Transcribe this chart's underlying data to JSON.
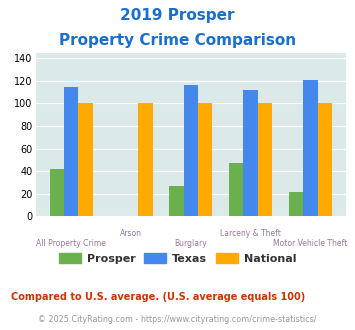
{
  "title_line1": "2019 Prosper",
  "title_line2": "Property Crime Comparison",
  "categories_top": [
    "",
    "Arson",
    "",
    "Larceny & Theft",
    ""
  ],
  "categories_bot": [
    "All Property Crime",
    "",
    "Burglary",
    "",
    "Motor Vehicle Theft"
  ],
  "prosper": [
    42,
    0,
    27,
    47,
    21
  ],
  "texas": [
    115,
    0,
    116,
    112,
    121
  ],
  "national": [
    100,
    100,
    100,
    100,
    100
  ],
  "prosper_color": "#6ab04c",
  "texas_color": "#4488ee",
  "national_color": "#ffaa00",
  "ylim": [
    0,
    145
  ],
  "yticks": [
    0,
    20,
    40,
    60,
    80,
    100,
    120,
    140
  ],
  "bg_color": "#dce9e9",
  "fig_bg": "#ffffff",
  "title_color": "#1a6fcc",
  "xlabel_color": "#997799",
  "footnote1": "Compared to U.S. average. (U.S. average equals 100)",
  "footnote2": "© 2025 CityRating.com - https://www.cityrating.com/crime-statistics/",
  "footnote1_color": "#cc3300",
  "footnote2_color": "#999999",
  "legend_labels": [
    "Prosper",
    "Texas",
    "National"
  ],
  "legend_text_color": "#333333",
  "bar_width": 0.24
}
